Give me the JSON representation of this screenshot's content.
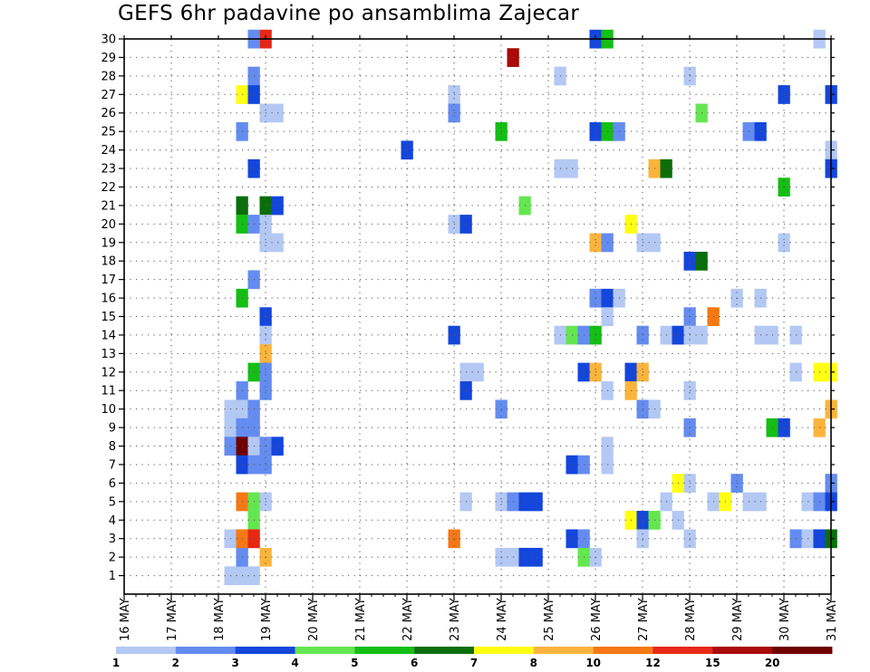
{
  "chart_data": {
    "type": "heatmap",
    "title": "GEFS 6hr padavine po ansamblima Zajecar",
    "xlabel": "",
    "ylabel": "",
    "x_range_days": [
      16,
      31
    ],
    "x_ticks": [
      "16 MAY",
      "17 MAY",
      "18 MAY",
      "19 MAY",
      "20 MAY",
      "21 MAY",
      "22 MAY",
      "23 MAY",
      "24 MAY",
      "25 MAY",
      "26 MAY",
      "27 MAY",
      "28 MAY",
      "29 MAY",
      "30 MAY",
      "31 MAY"
    ],
    "y_ticks": [
      "1",
      "2",
      "3",
      "4",
      "5",
      "6",
      "7",
      "8",
      "9",
      "10",
      "11",
      "12",
      "13",
      "14",
      "15",
      "16",
      "17",
      "18",
      "19",
      "20",
      "21",
      "22",
      "23",
      "24",
      "25",
      "26",
      "27",
      "28",
      "29",
      "30"
    ],
    "ylim": [
      0,
      30
    ],
    "grid": true,
    "colorbar": {
      "levels": [
        "1",
        "2",
        "3",
        "4",
        "5",
        "6",
        "7",
        "8",
        "10",
        "12",
        "15",
        "20"
      ],
      "colors": [
        "#b4c8f4",
        "#648cf0",
        "#1446dc",
        "#64e650",
        "#14be14",
        "#0a6e0a",
        "#ffff14",
        "#fab43c",
        "#f57814",
        "#e62814",
        "#aa0a0a",
        "#6e0000"
      ]
    },
    "cells": [
      [
        18.25,
        1,
        0
      ],
      [
        18.5,
        1,
        0
      ],
      [
        18.75,
        1,
        0
      ],
      [
        18.5,
        2,
        1
      ],
      [
        19.0,
        30,
        9
      ],
      [
        18.75,
        30,
        1
      ],
      [
        24.25,
        29,
        10
      ],
      [
        26.0,
        30,
        2
      ],
      [
        26.25,
        30,
        4
      ],
      [
        30.75,
        30,
        0
      ],
      [
        18.75,
        28,
        1
      ],
      [
        25.25,
        28,
        0
      ],
      [
        28.0,
        28,
        0
      ],
      [
        18.5,
        27,
        6
      ],
      [
        18.75,
        27,
        2
      ],
      [
        23.0,
        27,
        0
      ],
      [
        30.0,
        27,
        2
      ],
      [
        31.0,
        27,
        2
      ],
      [
        19.0,
        26,
        0
      ],
      [
        19.25,
        26,
        0
      ],
      [
        23.0,
        26,
        1
      ],
      [
        28.25,
        26,
        3
      ],
      [
        18.5,
        25,
        1
      ],
      [
        24.0,
        25,
        4
      ],
      [
        26.0,
        25,
        2
      ],
      [
        26.25,
        25,
        4
      ],
      [
        26.5,
        25,
        1
      ],
      [
        29.25,
        25,
        1
      ],
      [
        29.5,
        25,
        2
      ],
      [
        22.0,
        24,
        2
      ],
      [
        31.0,
        24,
        0
      ],
      [
        18.75,
        23,
        2
      ],
      [
        25.25,
        23,
        0
      ],
      [
        25.5,
        23,
        0
      ],
      [
        27.25,
        23,
        7
      ],
      [
        27.5,
        23,
        5
      ],
      [
        31.0,
        23,
        2
      ],
      [
        30.0,
        22,
        4
      ],
      [
        18.5,
        21,
        5
      ],
      [
        19.0,
        21,
        5
      ],
      [
        19.25,
        21,
        2
      ],
      [
        24.5,
        21,
        3
      ],
      [
        18.5,
        20,
        4
      ],
      [
        18.75,
        20,
        1
      ],
      [
        19.0,
        20,
        0
      ],
      [
        23.0,
        20,
        0
      ],
      [
        23.25,
        20,
        2
      ],
      [
        26.75,
        20,
        6
      ],
      [
        19.0,
        19,
        0
      ],
      [
        19.25,
        19,
        0
      ],
      [
        26.0,
        19,
        7
      ],
      [
        26.25,
        19,
        1
      ],
      [
        27.0,
        19,
        0
      ],
      [
        27.25,
        19,
        0
      ],
      [
        30.0,
        19,
        0
      ],
      [
        28.0,
        18,
        2
      ],
      [
        28.25,
        18,
        5
      ],
      [
        18.75,
        17,
        1
      ],
      [
        18.5,
        16,
        4
      ],
      [
        26.0,
        16,
        1
      ],
      [
        26.25,
        16,
        2
      ],
      [
        26.5,
        16,
        0
      ],
      [
        29.0,
        16,
        0
      ],
      [
        29.5,
        16,
        0
      ],
      [
        19.0,
        15,
        2
      ],
      [
        26.25,
        15,
        0
      ],
      [
        28.0,
        15,
        1
      ],
      [
        28.5,
        15,
        8
      ],
      [
        19.0,
        14,
        0
      ],
      [
        23.0,
        14,
        2
      ],
      [
        25.25,
        14,
        0
      ],
      [
        25.5,
        14,
        3
      ],
      [
        25.75,
        14,
        1
      ],
      [
        26.0,
        14,
        4
      ],
      [
        27.0,
        14,
        1
      ],
      [
        27.5,
        14,
        0
      ],
      [
        27.75,
        14,
        2
      ],
      [
        28.0,
        14,
        0
      ],
      [
        28.25,
        14,
        0
      ],
      [
        29.5,
        14,
        0
      ],
      [
        29.75,
        14,
        0
      ],
      [
        30.25,
        14,
        0
      ],
      [
        19.0,
        13,
        7
      ],
      [
        18.75,
        12,
        4
      ],
      [
        19.0,
        12,
        1
      ],
      [
        23.25,
        12,
        0
      ],
      [
        23.5,
        12,
        0
      ],
      [
        25.75,
        12,
        2
      ],
      [
        26.0,
        12,
        7
      ],
      [
        26.75,
        12,
        2
      ],
      [
        27.0,
        12,
        7
      ],
      [
        30.25,
        12,
        0
      ],
      [
        30.75,
        12,
        6
      ],
      [
        31.0,
        12,
        6
      ],
      [
        18.5,
        11,
        1
      ],
      [
        19.0,
        11,
        1
      ],
      [
        23.25,
        11,
        2
      ],
      [
        26.25,
        11,
        0
      ],
      [
        26.75,
        11,
        7
      ],
      [
        28.0,
        11,
        0
      ],
      [
        18.25,
        10,
        0
      ],
      [
        18.5,
        10,
        0
      ],
      [
        18.75,
        10,
        1
      ],
      [
        24.0,
        10,
        1
      ],
      [
        27.0,
        10,
        1
      ],
      [
        27.25,
        10,
        0
      ],
      [
        31.0,
        10,
        7
      ],
      [
        18.25,
        9,
        0
      ],
      [
        18.5,
        9,
        1
      ],
      [
        18.75,
        9,
        1
      ],
      [
        28.0,
        9,
        1
      ],
      [
        29.75,
        9,
        4
      ],
      [
        30.0,
        9,
        2
      ],
      [
        30.75,
        9,
        7
      ],
      [
        18.25,
        8,
        1
      ],
      [
        18.5,
        8,
        11
      ],
      [
        18.75,
        8,
        0
      ],
      [
        19.0,
        8,
        1
      ],
      [
        19.25,
        8,
        2
      ],
      [
        26.25,
        8,
        0
      ],
      [
        18.5,
        7,
        2
      ],
      [
        18.75,
        7,
        1
      ],
      [
        19.0,
        7,
        1
      ],
      [
        25.5,
        7,
        2
      ],
      [
        25.75,
        7,
        1
      ],
      [
        26.25,
        7,
        0
      ],
      [
        28.0,
        6,
        0
      ],
      [
        29.0,
        6,
        1
      ],
      [
        31.0,
        6,
        1
      ],
      [
        27.75,
        6,
        6
      ],
      [
        18.5,
        5,
        8
      ],
      [
        18.75,
        5,
        3
      ],
      [
        19.0,
        5,
        0
      ],
      [
        23.25,
        5,
        0
      ],
      [
        24.0,
        5,
        0
      ],
      [
        24.25,
        5,
        1
      ],
      [
        24.5,
        5,
        2
      ],
      [
        24.75,
        5,
        2
      ],
      [
        27.5,
        5,
        0
      ],
      [
        28.5,
        5,
        0
      ],
      [
        28.75,
        5,
        6
      ],
      [
        29.25,
        5,
        0
      ],
      [
        29.5,
        5,
        0
      ],
      [
        30.5,
        5,
        0
      ],
      [
        30.75,
        5,
        1
      ],
      [
        31.0,
        5,
        2
      ],
      [
        18.75,
        4,
        3
      ],
      [
        26.75,
        4,
        6
      ],
      [
        27.0,
        4,
        2
      ],
      [
        27.25,
        4,
        3
      ],
      [
        27.75,
        4,
        0
      ],
      [
        18.25,
        3,
        0
      ],
      [
        18.5,
        3,
        8
      ],
      [
        18.75,
        3,
        9
      ],
      [
        23.0,
        3,
        8
      ],
      [
        25.5,
        3,
        2
      ],
      [
        25.75,
        3,
        1
      ],
      [
        27.0,
        3,
        0
      ],
      [
        28.0,
        3,
        0
      ],
      [
        30.25,
        3,
        1
      ],
      [
        30.5,
        3,
        0
      ],
      [
        30.75,
        3,
        2
      ],
      [
        31.0,
        3,
        5
      ],
      [
        19.0,
        2,
        7
      ],
      [
        24.0,
        2,
        0
      ],
      [
        24.25,
        2,
        0
      ],
      [
        24.5,
        2,
        2
      ],
      [
        24.75,
        2,
        2
      ],
      [
        25.75,
        2,
        3
      ],
      [
        26.0,
        2,
        0
      ]
    ]
  }
}
